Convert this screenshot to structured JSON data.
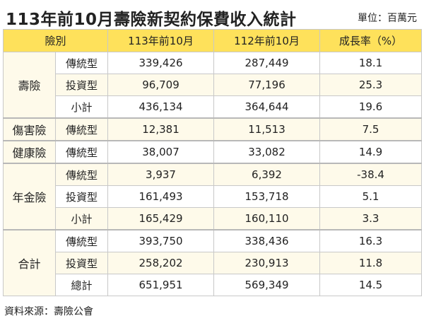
{
  "title": "113年前10月壽險新契約保費收入統計",
  "unit": "單位：百萬元",
  "header": {
    "category": "險別",
    "col1": "113年前10月",
    "col2": "112年前10月",
    "col3": "成長率（%）"
  },
  "rows": [
    {
      "group": "壽險",
      "type": "傳統型",
      "v1": "339,426",
      "v2": "287,449",
      "rate": "18.1"
    },
    {
      "type": "投資型",
      "v1": "96,709",
      "v2": "77,196",
      "rate": "25.3"
    },
    {
      "type": "小計",
      "v1": "436,134",
      "v2": "364,644",
      "rate": "19.6"
    },
    {
      "group": "傷害險",
      "type": "傳統型",
      "v1": "12,381",
      "v2": "11,513",
      "rate": "7.5"
    },
    {
      "group": "健康險",
      "type": "傳統型",
      "v1": "38,007",
      "v2": "33,082",
      "rate": "14.9"
    },
    {
      "group": "年金險",
      "type": "傳統型",
      "v1": "3,937",
      "v2": "6,392",
      "rate": "-38.4"
    },
    {
      "type": "投資型",
      "v1": "161,493",
      "v2": "153,718",
      "rate": "5.1"
    },
    {
      "type": "小計",
      "v1": "165,429",
      "v2": "160,110",
      "rate": "3.3"
    },
    {
      "group": "合計",
      "type": "傳統型",
      "v1": "393,750",
      "v2": "338,436",
      "rate": "16.3"
    },
    {
      "type": "投資型",
      "v1": "258,202",
      "v2": "230,913",
      "rate": "11.8"
    },
    {
      "type": "總計",
      "v1": "651,951",
      "v2": "569,349",
      "rate": "14.5"
    }
  ],
  "source": "資料來源：壽險公會"
}
